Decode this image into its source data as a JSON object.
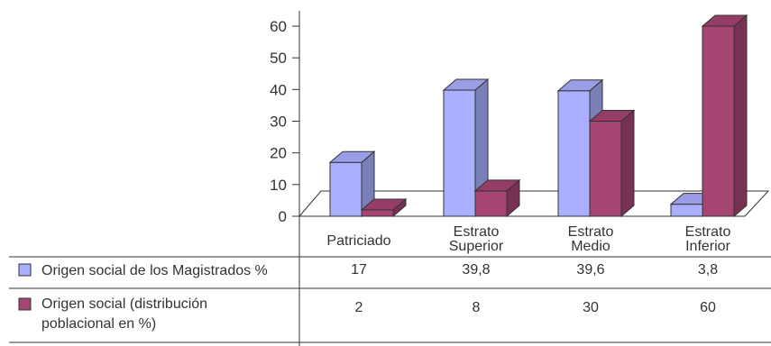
{
  "chart_data": {
    "type": "bar",
    "title": "",
    "xlabel": "",
    "ylabel": "",
    "ylim": [
      0,
      60
    ],
    "yticks": [
      0,
      10,
      20,
      30,
      40,
      50,
      60
    ],
    "grid": false,
    "three_d": true,
    "categories": [
      [
        "Patriciado"
      ],
      [
        "Estrato",
        "Superior"
      ],
      [
        "Estrato",
        "Medio"
      ],
      [
        "Estrato",
        "Inferior"
      ]
    ],
    "series": [
      {
        "name": "Origen social de los Magistrados %",
        "values": [
          17,
          39.8,
          39.6,
          3.8
        ],
        "labels": [
          "17",
          "39,8",
          "39,6",
          "3,8"
        ],
        "color": "#aab0ff"
      },
      {
        "name": "Origen social (distribución poblacional en %)",
        "name_lines": [
          "Origen social (distribución",
          "poblacional en %)"
        ],
        "values": [
          2,
          8,
          30,
          60
        ],
        "labels": [
          "2",
          "8",
          "30",
          "60"
        ],
        "color": "#a64472"
      }
    ],
    "legend_placement": "data-table"
  }
}
